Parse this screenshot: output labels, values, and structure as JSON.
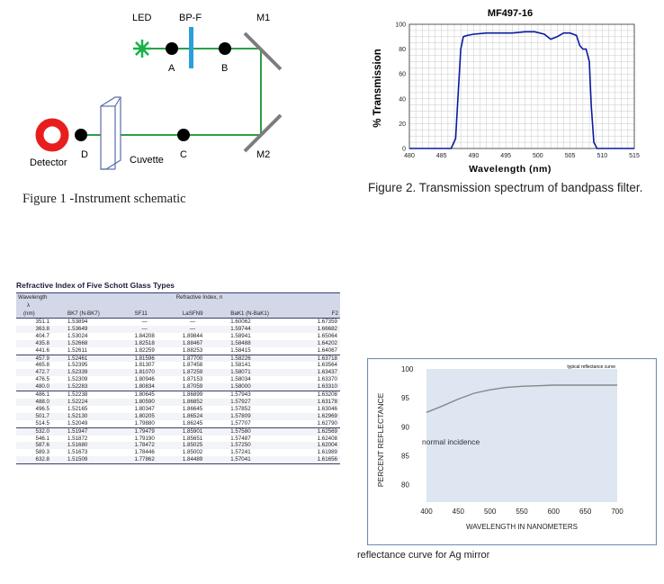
{
  "figure1": {
    "labels": {
      "led": "LED",
      "bpf": "BP-F",
      "m1": "M1",
      "m2": "M2",
      "a": "A",
      "b": "B",
      "c": "C",
      "d": "D",
      "detector": "Detector",
      "cuvette": "Cuvette"
    },
    "caption": "Figure 1 -Instrument schematic",
    "colors": {
      "beam": "#2aa046",
      "led": "#1bb04a",
      "filter": "#2aa0d8",
      "detector": "#e81e1e",
      "mirror": "#7d7d7d",
      "cuvette": "#5a6fa8"
    }
  },
  "figure2": {
    "caption": "Figure 2.  Transmission spectrum of bandpass filter."
  },
  "figure3": {
    "caption": "reflectance curve for Ag mirror",
    "box_color": "#6e8fb4"
  },
  "table": {
    "title": "Refractive Index of Five Schott Glass Types",
    "header": {
      "wavelength": "Wavelength",
      "lambda": "λ",
      "unit": "(nm)",
      "refractive_index": "Refractive Index, n",
      "columns": [
        "BK7 (N-BK7)",
        "SF11",
        "LaSFN9",
        "BaK1 (N-BaK1)",
        "F2"
      ]
    },
    "groups": [
      [
        [
          "351.1",
          "1.53894",
          "—",
          "—",
          "1.60062",
          "1.67359"
        ],
        [
          "363.8",
          "1.53649",
          "—",
          "—",
          "1.59744",
          "1.66682"
        ],
        [
          "404.7",
          "1.53024",
          "1.84208",
          "1.89844",
          "1.58941",
          "1.65064"
        ],
        [
          "435.8",
          "1.52668",
          "1.82518",
          "1.88467",
          "1.58488",
          "1.64202"
        ],
        [
          "441.6",
          "1.52611",
          "1.82259",
          "1.88253",
          "1.58415",
          "1.64067"
        ]
      ],
      [
        [
          "457.9",
          "1.52461",
          "1.81596",
          "1.87700",
          "1.58226",
          "1.63718"
        ],
        [
          "465.8",
          "1.52395",
          "1.81307",
          "1.87458",
          "1.58141",
          "1.63564"
        ],
        [
          "472.7",
          "1.52339",
          "1.81070",
          "1.87259",
          "1.58071",
          "1.63437"
        ],
        [
          "476.5",
          "1.52309",
          "1.80946",
          "1.87153",
          "1.58034",
          "1.63370"
        ],
        [
          "480.0",
          "1.52283",
          "1.80834",
          "1.87059",
          "1.58000",
          "1.63310"
        ]
      ],
      [
        [
          "486.1",
          "1.52238",
          "1.80645",
          "1.86899",
          "1.57943",
          "1.63208"
        ],
        [
          "488.0",
          "1.52224",
          "1.80590",
          "1.86852",
          "1.57927",
          "1.63178"
        ],
        [
          "496.5",
          "1.52165",
          "1.80347",
          "1.86645",
          "1.57852",
          "1.63046"
        ],
        [
          "501.7",
          "1.52130",
          "1.80205",
          "1.86524",
          "1.57809",
          "1.62969"
        ],
        [
          "514.5",
          "1.52049",
          "1.79880",
          "1.86245",
          "1.57707",
          "1.62790"
        ]
      ],
      [
        [
          "532.0",
          "1.51947",
          "1.79479",
          "1.85901",
          "1.57580",
          "1.62569"
        ],
        [
          "546.1",
          "1.51872",
          "1.79190",
          "1.85651",
          "1.57487",
          "1.62408"
        ],
        [
          "587.6",
          "1.51680",
          "1.78472",
          "1.85025",
          "1.57250",
          "1.62004"
        ],
        [
          "589.3",
          "1.51673",
          "1.78446",
          "1.85002",
          "1.57241",
          "1.61989"
        ],
        [
          "632.8",
          "1.51509",
          "1.77862",
          "1.84489",
          "1.57041",
          "1.61656"
        ]
      ]
    ]
  },
  "chart_data": [
    {
      "type": "line",
      "title": "MF497-16",
      "xlabel": "Wavelength (nm)",
      "ylabel": "% Transmission",
      "xlim": [
        480,
        515
      ],
      "ylim": [
        0,
        100
      ],
      "xticks": [
        480,
        485,
        490,
        495,
        500,
        505,
        510,
        515
      ],
      "yticks": [
        0,
        20,
        40,
        60,
        80,
        100
      ],
      "grid": true,
      "line_color": "#0a1aa0",
      "series": [
        {
          "x": [
            480,
            486.5,
            487.2,
            487.6,
            488.0,
            488.4,
            489,
            490,
            492,
            494,
            496,
            498,
            499.5,
            501,
            502,
            503,
            504,
            505,
            506,
            506.5,
            507,
            507.5,
            508,
            508.3,
            508.7,
            509.2,
            510,
            515
          ],
          "y": [
            0,
            0,
            8,
            45,
            80,
            90,
            91,
            92,
            93,
            93,
            93,
            94,
            94,
            92,
            88,
            90,
            93,
            93,
            91,
            83,
            80,
            80,
            70,
            35,
            5,
            0,
            0,
            0
          ]
        }
      ]
    },
    {
      "type": "line",
      "title": "",
      "xlabel": "WAVELENGTH IN NANOMETERS",
      "ylabel": "PERCENT REFLECTANCE",
      "xlim": [
        400,
        700
      ],
      "ylim": [
        77,
        100
      ],
      "xticks": [
        400,
        450,
        500,
        550,
        600,
        650,
        700
      ],
      "yticks": [
        80,
        85,
        90,
        95,
        100
      ],
      "grid": false,
      "legend": "typical reflectance curve",
      "annotation": "normal incidence",
      "plot_bg": "#dde6f1",
      "line_color": "#888888",
      "series": [
        {
          "x": [
            400,
            425,
            450,
            475,
            500,
            525,
            550,
            575,
            600,
            625,
            650,
            675,
            700
          ],
          "y": [
            92.5,
            93.6,
            94.8,
            95.8,
            96.4,
            96.8,
            97.0,
            97.1,
            97.2,
            97.2,
            97.2,
            97.2,
            97.2
          ]
        }
      ]
    }
  ]
}
